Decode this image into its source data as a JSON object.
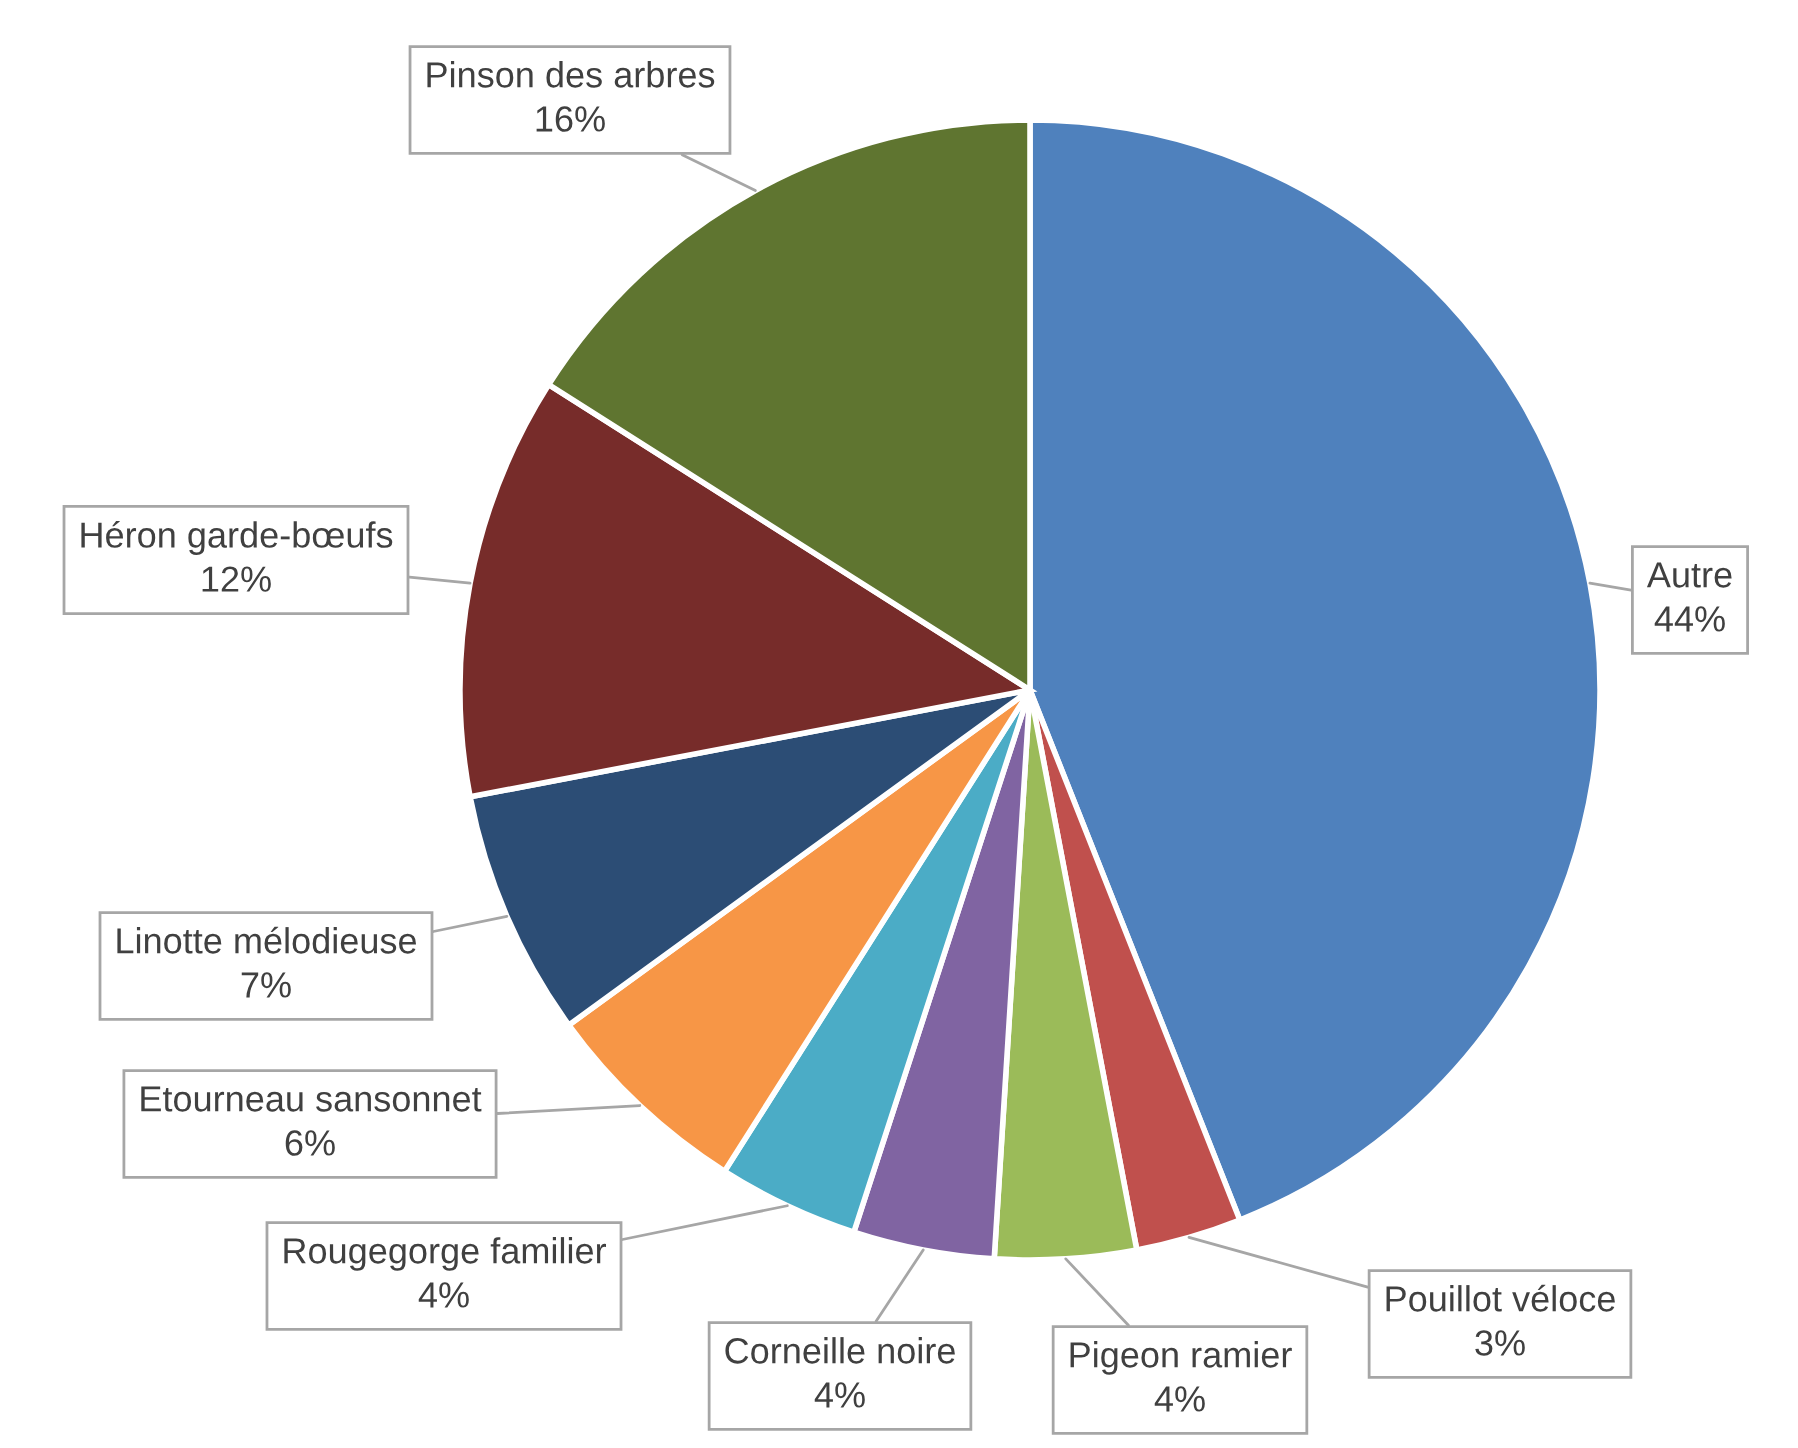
{
  "chart_data": {
    "type": "pie",
    "categories": [
      "Autre",
      "Pouillot véloce",
      "Pigeon ramier",
      "Corneille noire",
      "Rougegorge familier",
      "Etourneau sansonnet",
      "Linotte mélodieuse",
      "Héron garde-bœufs",
      "Pinson des arbres"
    ],
    "values": [
      44,
      3,
      4,
      4,
      4,
      6,
      7,
      12,
      16
    ],
    "colors": [
      "#4f81bd",
      "#c0504d",
      "#9bbb59",
      "#8064a2",
      "#4bacc6",
      "#f79646",
      "#2c4d75",
      "#772c2a",
      "#5f7530"
    ],
    "value_labels": [
      "44%",
      "3%",
      "4%",
      "4%",
      "4%",
      "6%",
      "7%",
      "12%",
      "16%"
    ]
  }
}
